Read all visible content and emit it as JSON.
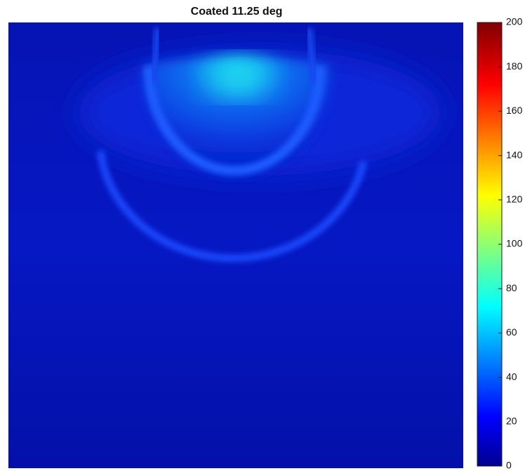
{
  "chart_data": {
    "type": "heatmap",
    "title": "Coated 11.25 deg",
    "colormap": "jet",
    "clim": [
      0,
      200
    ],
    "cticks": [
      0,
      20,
      40,
      60,
      80,
      100,
      120,
      140,
      160,
      180,
      200
    ]
  }
}
